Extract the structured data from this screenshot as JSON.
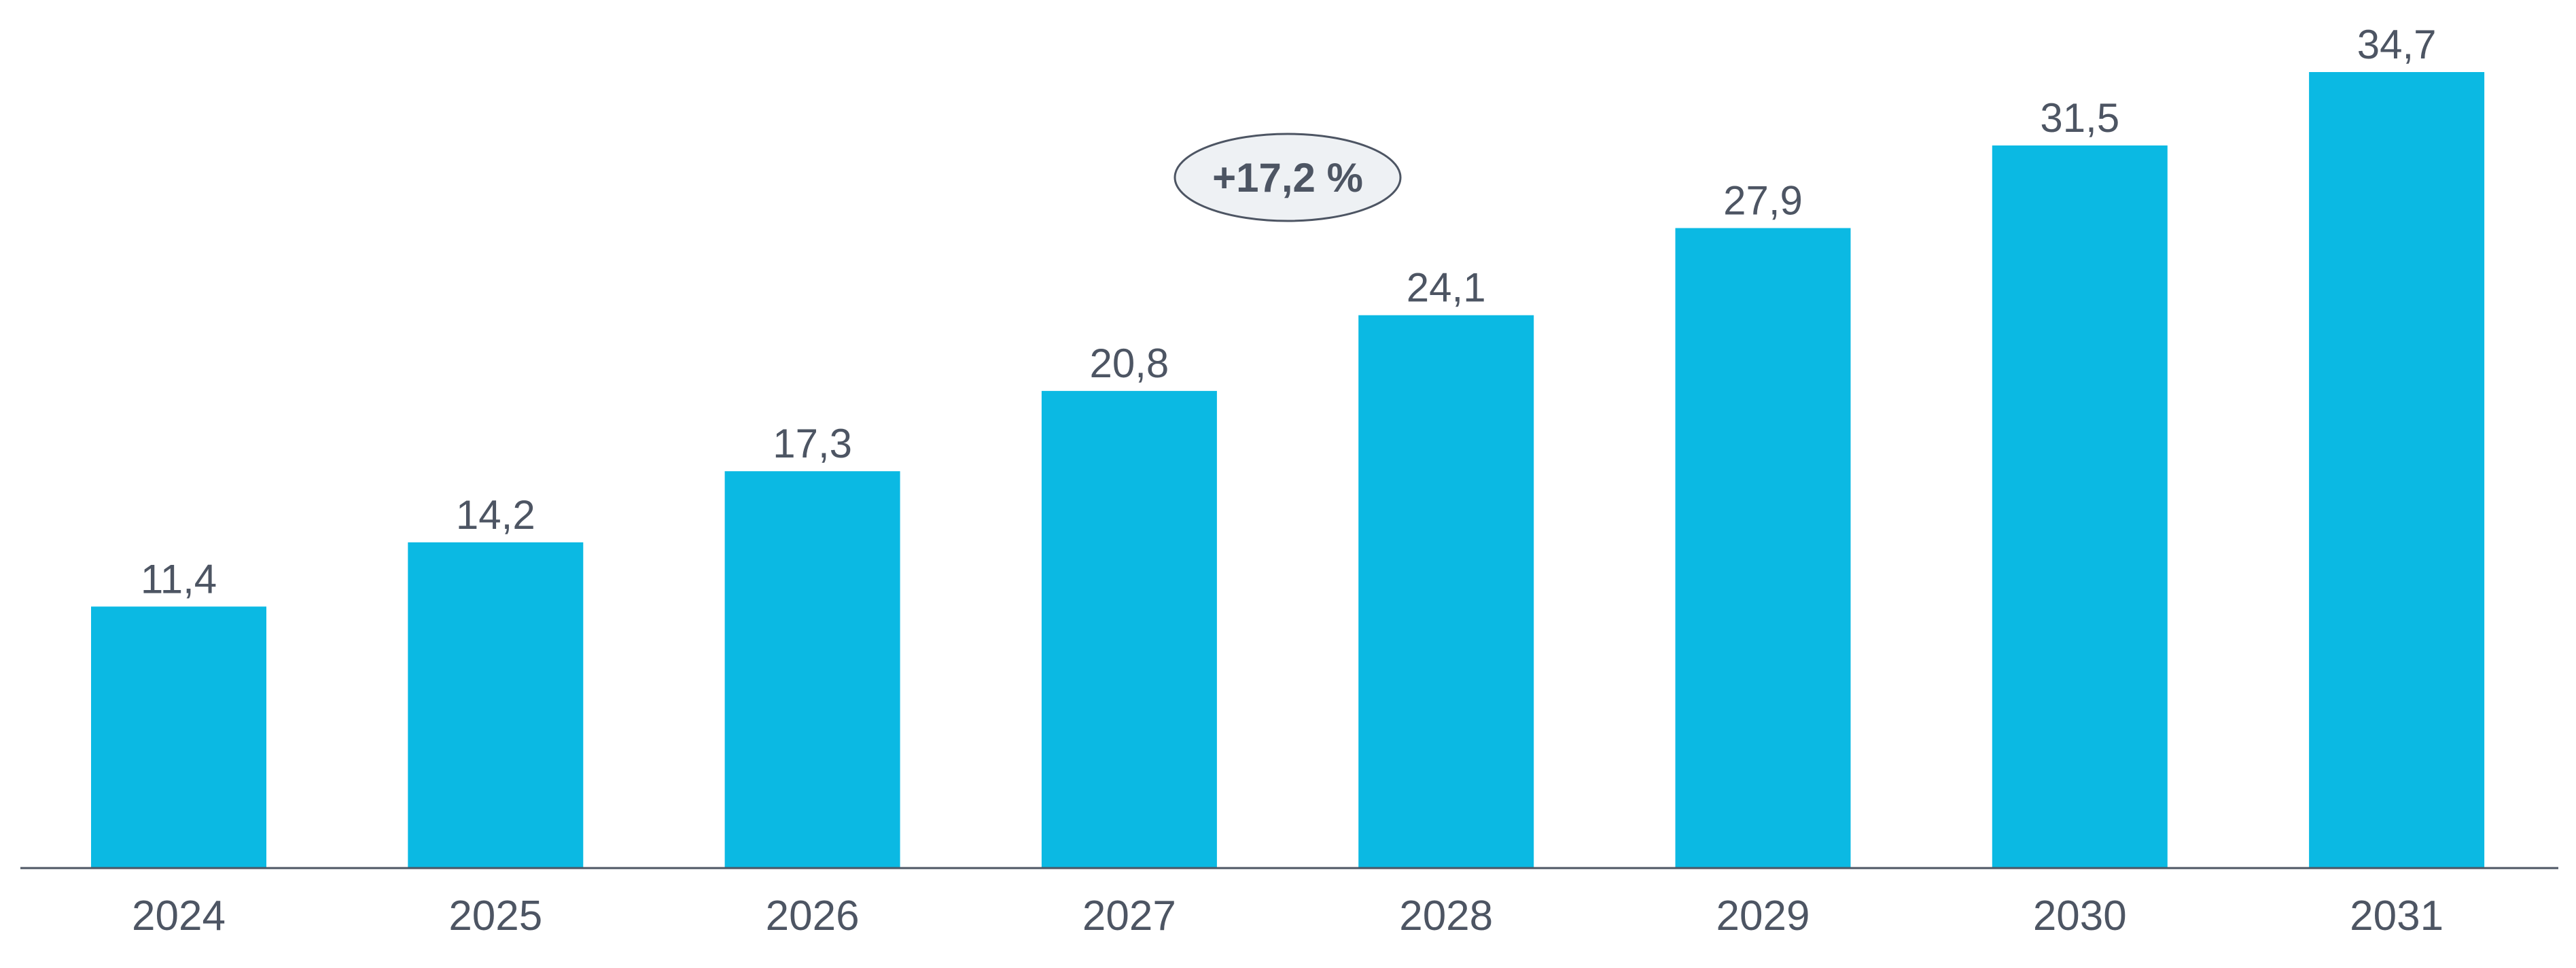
{
  "chart_data": {
    "type": "bar",
    "categories": [
      "2024",
      "2025",
      "2026",
      "2027",
      "2028",
      "2029",
      "2030",
      "2031"
    ],
    "values": [
      11.4,
      14.2,
      17.3,
      20.8,
      24.1,
      27.9,
      31.5,
      34.7
    ],
    "value_labels": [
      "11,4",
      "14,2",
      "17,3",
      "20,8",
      "24,1",
      "27,9",
      "31,5",
      "34,7"
    ],
    "title": "",
    "xlabel": "",
    "ylabel": "",
    "ylim": [
      0,
      34.7
    ],
    "grid": false,
    "legend": "none",
    "annotation": "+17,2 %",
    "colors": {
      "bar": "#0bb9e3",
      "axis": "#4d5563",
      "text": "#4d5563",
      "badge_fill": "#eef1f4",
      "badge_stroke": "#4d5563"
    }
  }
}
